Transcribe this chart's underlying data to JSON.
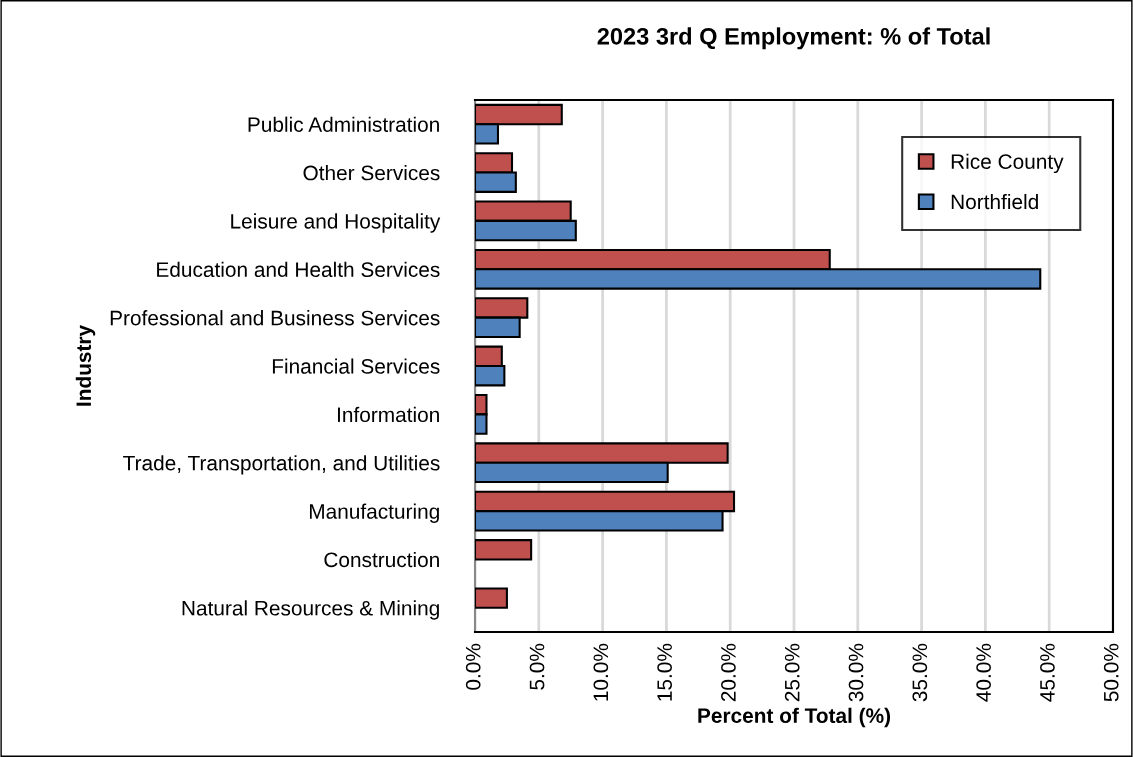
{
  "chart_data": {
    "type": "bar",
    "orientation": "horizontal",
    "title": "2023 3rd Q Employment: % of Total",
    "xlabel": "Percent of Total (%)",
    "ylabel": "Industry",
    "categories": [
      "Public Administration",
      "Other Services",
      "Leisure and Hospitality",
      "Education and Health Services",
      "Professional and Business Services",
      "Financial Services",
      "Information",
      "Trade, Transportation, and Utilities",
      "Manufacturing",
      "Construction",
      "Natural Resources & Mining"
    ],
    "series": [
      {
        "name": "Rice County",
        "color": "#c0504d",
        "values": [
          6.8,
          2.9,
          7.5,
          27.8,
          4.1,
          2.1,
          0.9,
          19.8,
          20.3,
          4.4,
          2.5
        ]
      },
      {
        "name": "Northfield",
        "color": "#4f81bd",
        "values": [
          1.8,
          3.2,
          7.9,
          44.3,
          3.5,
          2.3,
          0.9,
          15.1,
          19.4,
          null,
          null
        ]
      }
    ],
    "xlim": [
      0,
      50
    ],
    "xticks": [
      {
        "value": 0,
        "label": "0.0%"
      },
      {
        "value": 5,
        "label": "5.0%"
      },
      {
        "value": 10,
        "label": "10.0%"
      },
      {
        "value": 15,
        "label": "15.0%"
      },
      {
        "value": 20,
        "label": "20.0%"
      },
      {
        "value": 25,
        "label": "25.0%"
      },
      {
        "value": 30,
        "label": "30.0%"
      },
      {
        "value": 35,
        "label": "35.0%"
      },
      {
        "value": 40,
        "label": "40.0%"
      },
      {
        "value": 45,
        "label": "45.0%"
      },
      {
        "value": 50,
        "label": "50.0%"
      }
    ],
    "grid": "x",
    "legend": "top right"
  }
}
